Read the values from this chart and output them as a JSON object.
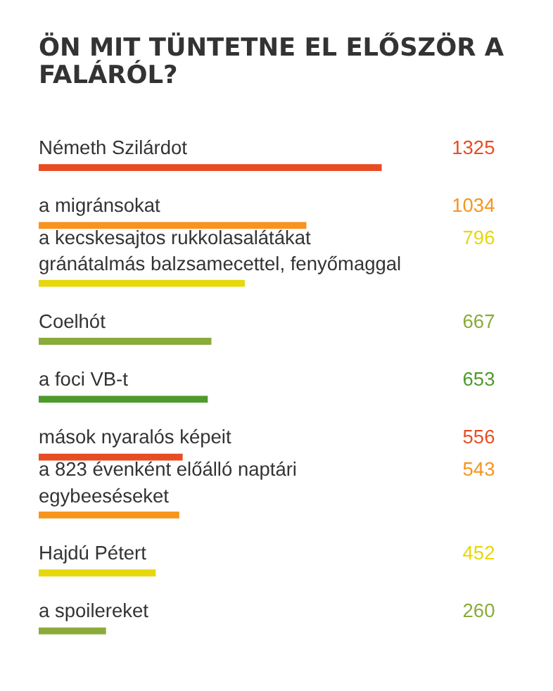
{
  "chart_data": {
    "type": "bar",
    "orientation": "horizontal",
    "title": "ÖN MIT TÜNTETNE EL ELŐSZÖR A FALÁRÓL?",
    "categories": [
      "Németh Szilárdot",
      "a migránsokat",
      "a kecskesajtos rukkolasalátákat gránátalmás balzsamecettel, fenyőmaggal",
      "Coelhót",
      "a foci VB-t",
      "mások nyaralós képeit",
      "a 823 évenként előálló naptári egybeeséseket",
      "Hajdú Pétert",
      "a spoilereket"
    ],
    "values": [
      1325,
      1034,
      796,
      667,
      653,
      556,
      543,
      452,
      260
    ],
    "colors": [
      "#e84c22",
      "#f7941d",
      "#e6d80a",
      "#8aab3a",
      "#4e9a2a",
      "#e84c22",
      "#f7941d",
      "#e6d80a",
      "#8aab3a"
    ],
    "data_labels": true,
    "legend": false,
    "grid": false
  }
}
